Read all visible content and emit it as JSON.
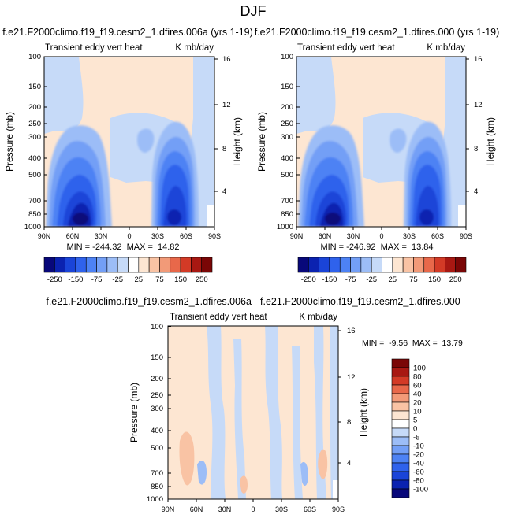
{
  "page_title": "DJF",
  "chart_data": [
    {
      "type": "heatmap",
      "title": "f.e21.F2000climo.f19_f19.cesm2_1.dfires.006a (yrs 1-19)",
      "subtitle_left": "Transient eddy vert heat",
      "subtitle_right": "K mb/day",
      "ylabel": "Pressure (mb)",
      "ylabel_right": "Height (km)",
      "x_ticks": [
        "90N",
        "60N",
        "30N",
        "0",
        "30S",
        "60S",
        "90S"
      ],
      "y_ticks": [
        "100",
        "150",
        "200",
        "250",
        "300",
        "400",
        "500",
        "700",
        "850",
        "1000"
      ],
      "y_ticks_right": [
        "16",
        "12",
        "8",
        "4"
      ],
      "stats": "MIN = -244.32  MAX =  14.82",
      "min": -244.32,
      "max": 14.82,
      "colorbar_levels": [
        -250,
        -200,
        -150,
        -100,
        -75,
        -50,
        -25,
        -10,
        10,
        25,
        50,
        75,
        100,
        150,
        200,
        250
      ],
      "colorbar_labels": [
        "-250",
        "-150",
        "-75",
        "-25",
        "25",
        "75",
        "150",
        "250"
      ]
    },
    {
      "type": "heatmap",
      "title": "f.e21.F2000climo.f19_f19.cesm2_1.dfires.000 (yrs 1-19)",
      "subtitle_left": "Transient eddy vert heat",
      "subtitle_right": "K mb/day",
      "ylabel": "Pressure (mb)",
      "ylabel_right": "Height (km)",
      "x_ticks": [
        "90N",
        "60N",
        "30N",
        "0",
        "30S",
        "60S",
        "90S"
      ],
      "y_ticks": [
        "100",
        "150",
        "200",
        "250",
        "300",
        "400",
        "500",
        "700",
        "850",
        "1000"
      ],
      "y_ticks_right": [
        "16",
        "12",
        "8",
        "4"
      ],
      "stats": "MIN = -246.92  MAX =  13.84",
      "min": -246.92,
      "max": 13.84,
      "colorbar_levels": [
        -250,
        -200,
        -150,
        -100,
        -75,
        -50,
        -25,
        -10,
        10,
        25,
        50,
        75,
        100,
        150,
        200,
        250
      ],
      "colorbar_labels": [
        "-250",
        "-150",
        "-75",
        "-25",
        "25",
        "75",
        "150",
        "250"
      ]
    },
    {
      "type": "heatmap",
      "title": "f.e21.F2000climo.f19_f19.cesm2_1.dfires.006a - f.e21.F2000climo.f19_f19.cesm2_1.dfires.000",
      "subtitle_left": "Transient eddy vert heat",
      "subtitle_right": "K mb/day",
      "ylabel": "Pressure (mb)",
      "ylabel_right": "Height (km)",
      "x_ticks": [
        "90N",
        "60N",
        "30N",
        "0",
        "30S",
        "60S",
        "90S"
      ],
      "y_ticks": [
        "100",
        "150",
        "200",
        "250",
        "300",
        "400",
        "500",
        "700",
        "850",
        "1000"
      ],
      "y_ticks_right": [
        "16",
        "12",
        "8",
        "4"
      ],
      "stats": "MIN =  -9.56  MAX =  13.79",
      "min": -9.56,
      "max": 13.79,
      "colorbar_labels": [
        "100",
        "80",
        "60",
        "40",
        "20",
        "10",
        "5",
        "0",
        "-5",
        "-10",
        "-20",
        "-40",
        "-60",
        "-80",
        "-100"
      ]
    }
  ],
  "colors": {
    "main_palette": [
      "#08087a",
      "#0b22b0",
      "#1a44d8",
      "#2f62ec",
      "#4d82f4",
      "#739ff6",
      "#9cbdf7",
      "#c6daf8",
      "#ffffff",
      "#fde6d2",
      "#f9c3a4",
      "#f29a78",
      "#e8684a",
      "#d33a26",
      "#a81812",
      "#7a0606"
    ],
    "diff_palette": [
      "#7a0606",
      "#a81812",
      "#d33a26",
      "#e8684a",
      "#f29a78",
      "#f9c3a4",
      "#fde6d2",
      "#ffffff",
      "#c6daf8",
      "#9cbdf7",
      "#739ff6",
      "#4d82f4",
      "#2f62ec",
      "#1a44d8",
      "#0b22b0",
      "#08087a"
    ],
    "background_pos": "#fde6d2",
    "background_neg": "#c6daf8"
  }
}
